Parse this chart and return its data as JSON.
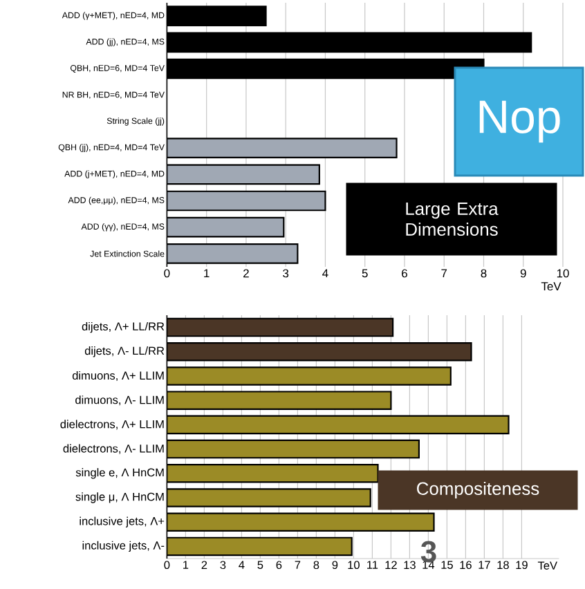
{
  "chart_data": [
    {
      "type": "bar",
      "orientation": "horizontal",
      "categories": [
        "ADD (γ+MET), nED=4, MD",
        "ADD (jj), nED=4, MS",
        "QBH, nED=6, MD=4 TeV",
        "NR BH, nED=6, MD=4 TeV",
        "String Scale (jj)",
        "QBH (jj), nED=4, MD=4 TeV",
        "ADD (j+MET), nED=4, MD",
        "ADD (ee,μμ), nED=4, MS",
        "ADD (γγ), nED=4, MS",
        "Jet Extinction Scale"
      ],
      "values": [
        2.5,
        9.2,
        8.0,
        null,
        null,
        5.8,
        3.85,
        4.0,
        2.95,
        3.3
      ],
      "colors": [
        "#000000",
        "#000000",
        "#000000",
        "#000000",
        "#000000",
        "#a0a8b4",
        "#a0a8b4",
        "#a0a8b4",
        "#a0a8b4",
        "#a0a8b4"
      ],
      "xlim": [
        0,
        10
      ],
      "xticks": [
        0,
        1,
        2,
        3,
        4,
        5,
        6,
        7,
        8,
        9,
        10
      ],
      "xlabel": "TeV",
      "grid": "x",
      "annotations": [
        "Nop",
        "Large Extra Dimensions"
      ]
    },
    {
      "type": "bar",
      "orientation": "horizontal",
      "categories": [
        "dijets, Λ+ LL/RR",
        "dijets, Λ- LL/RR",
        "dimuons, Λ+ LLIM",
        "dimuons, Λ- LLIM",
        "dielectrons, Λ+ LLIM",
        "dielectrons, Λ- LLIM",
        "single e,  Λ HnCM",
        "single μ, Λ HnCM",
        "inclusive jets, Λ+",
        "inclusive jets, Λ-"
      ],
      "values": [
        12.1,
        16.3,
        15.2,
        12.0,
        18.3,
        13.5,
        11.3,
        10.9,
        14.3,
        9.9
      ],
      "colors": [
        "#4b3626",
        "#4b3626",
        "#9b8b26",
        "#9b8b26",
        "#9b8b26",
        "#9b8b26",
        "#9b8b26",
        "#9b8b26",
        "#9b8b26",
        "#9b8b26"
      ],
      "xlim": [
        0,
        21
      ],
      "xticks": [
        0,
        1,
        2,
        3,
        4,
        5,
        6,
        7,
        8,
        9,
        10,
        11,
        12,
        13,
        14,
        15,
        16,
        17,
        18,
        19
      ],
      "xlabel": "TeV",
      "grid": "x",
      "annotations": [
        "Compositeness",
        "3"
      ]
    }
  ]
}
